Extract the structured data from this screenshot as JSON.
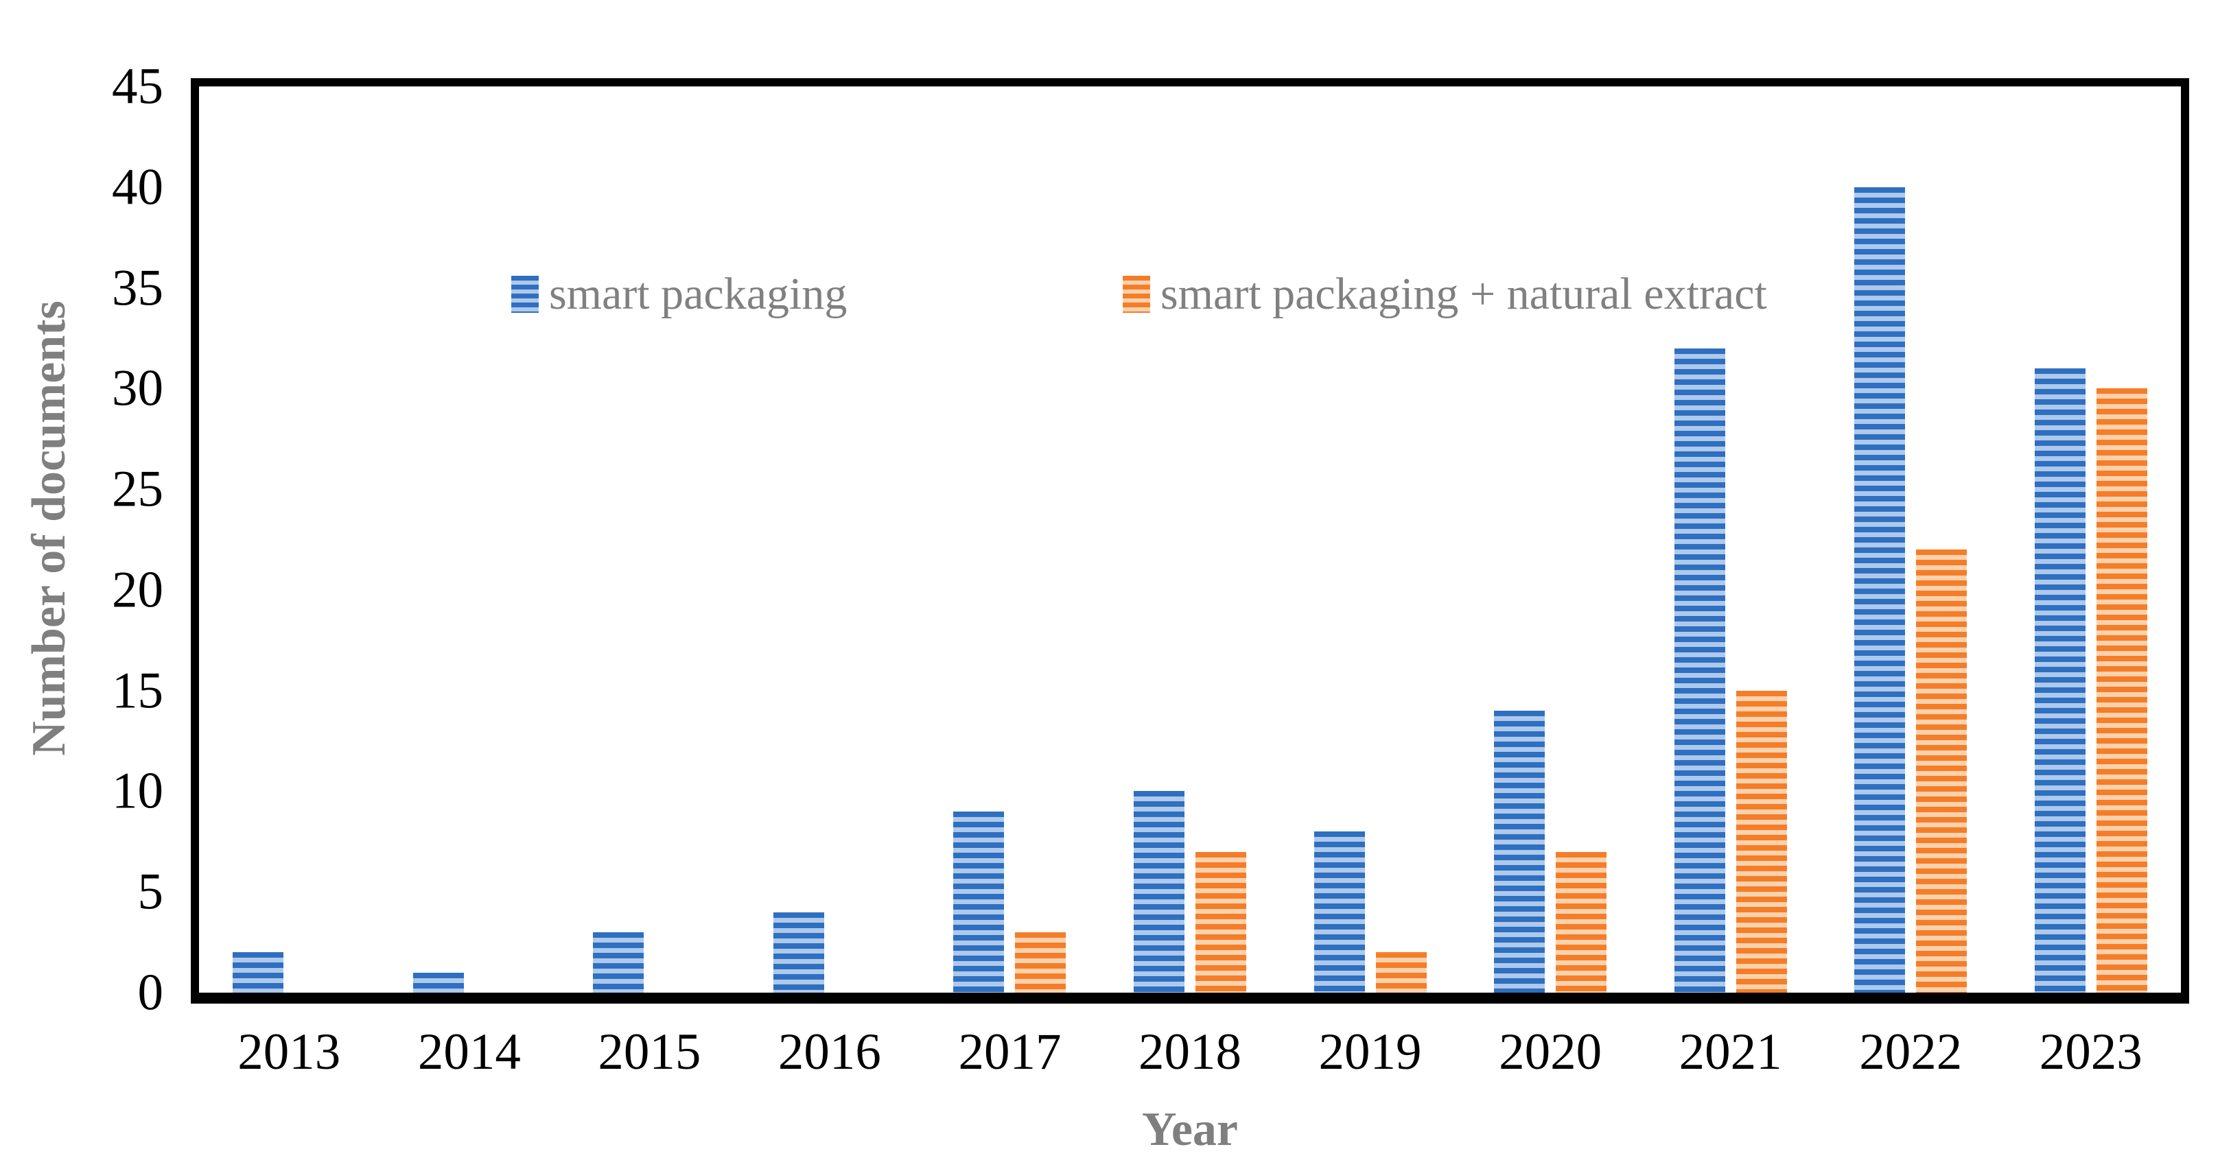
{
  "chart_data": {
    "type": "bar",
    "title": "",
    "xlabel": "Year",
    "ylabel": "Number of documents",
    "categories": [
      "2013",
      "2014",
      "2015",
      "2016",
      "2017",
      "2018",
      "2019",
      "2020",
      "2021",
      "2022",
      "2023"
    ],
    "series": [
      {
        "name": "smart packaging",
        "values": [
          2,
          1,
          3,
          4,
          9,
          10,
          8,
          14,
          32,
          40,
          31
        ],
        "stripe_dark": "#2E6FC0",
        "stripe_light": "#AEC9EB"
      },
      {
        "name": "smart packaging + natural extract",
        "values": [
          0,
          0,
          0,
          0,
          3,
          7,
          2,
          7,
          15,
          22,
          30
        ],
        "stripe_dark": "#F57D28",
        "stripe_light": "#FBD2AE"
      }
    ],
    "ylim": [
      0,
      45
    ],
    "yticks": [
      0,
      5,
      10,
      15,
      20,
      25,
      30,
      35,
      40,
      45
    ],
    "grid": false,
    "legend_position": "top-left-inside",
    "axis_color": "#000000",
    "tick_label_color": "#000000",
    "axis_title_color": "#7F7F7F"
  }
}
